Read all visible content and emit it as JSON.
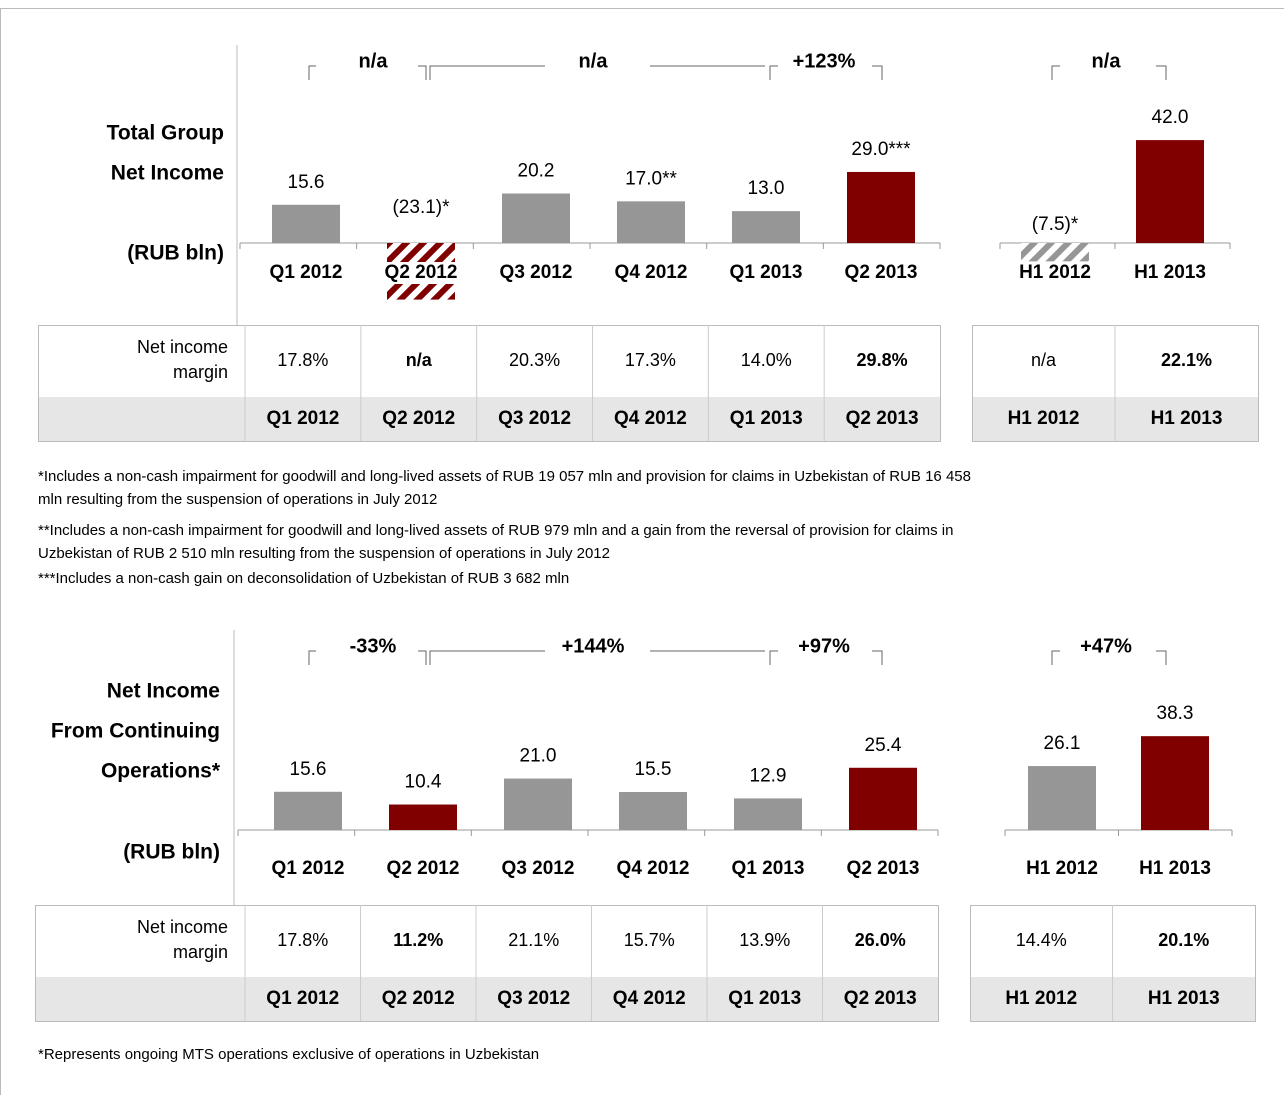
{
  "chart_data": [
    {
      "type": "bar",
      "categories": [
        "Q1 2012",
        "Q2 2012",
        "Q3 2012",
        "Q4 2012",
        "Q1 2013",
        "Q2 2013"
      ],
      "values": [
        15.6,
        -23.1,
        20.2,
        17.0,
        13.0,
        29.0
      ],
      "value_labels": [
        "15.6",
        "(23.1)*",
        "20.2",
        "17.0**",
        "13.0",
        "29.0***"
      ],
      "colors": [
        "#969696",
        "#800000",
        "#969696",
        "#969696",
        "#969696",
        "#800000"
      ]
    },
    {
      "type": "bar",
      "categories": [
        "H1 2012",
        "H1 2013"
      ],
      "values": [
        -7.5,
        42.0
      ],
      "value_labels": [
        "(7.5)*",
        "42.0"
      ],
      "colors": [
        "#969696",
        "#800000"
      ]
    },
    {
      "type": "bar",
      "categories": [
        "Q1 2012",
        "Q2 2012",
        "Q3 2012",
        "Q4 2012",
        "Q1 2013",
        "Q2 2013"
      ],
      "values": [
        15.6,
        10.4,
        21.0,
        15.5,
        12.9,
        25.4
      ],
      "value_labels": [
        "15.6",
        "10.4",
        "21.0",
        "15.5",
        "12.9",
        "25.4"
      ],
      "colors": [
        "#969696",
        "#800000",
        "#969696",
        "#969696",
        "#969696",
        "#800000"
      ]
    },
    {
      "type": "bar",
      "categories": [
        "H1 2012",
        "H1 2013"
      ],
      "values": [
        26.1,
        38.3
      ],
      "value_labels": [
        "26.1",
        "38.3"
      ],
      "colors": [
        "#969696",
        "#800000"
      ]
    }
  ],
  "sections": [
    {
      "title_lines": [
        "Total Group",
        "Net Income"
      ],
      "unit": "(RUB bln)",
      "growth": [
        "n/a",
        "n/a",
        "+123%",
        "n/a"
      ],
      "table": {
        "row_label": [
          "Net income",
          "margin"
        ],
        "quarterly": {
          "values": [
            "17.8%",
            "n/a",
            "20.3%",
            "17.3%",
            "14.0%",
            "29.8%"
          ],
          "categories": [
            "Q1 2012",
            "Q2 2012",
            "Q3 2012",
            "Q4 2012",
            "Q1 2013",
            "Q2 2013"
          ],
          "colors": [
            "#000000",
            "#8b0000",
            "#000000",
            "#000000",
            "#000000",
            "#8b0000"
          ]
        },
        "half": {
          "values": [
            "n/a",
            "22.1%"
          ],
          "categories": [
            "H1 2012",
            "H1 2013"
          ],
          "colors": [
            "#000000",
            "#8b0000"
          ]
        }
      },
      "footnotes": [
        "*Includes a non-cash impairment for goodwill and long-lived assets of RUB 19 057 mln and provision for claims in Uzbekistan of RUB 16 458",
        "mln resulting from the suspension of operations in July 2012",
        "**Includes a non-cash impairment for goodwill and long-lived assets of RUB 979 mln and a gain from the reversal of provision for claims in",
        "Uzbekistan of RUB 2 510 mln resulting from the suspension of operations in July 2012",
        "***Includes a non-cash gain on deconsolidation of Uzbekistan of RUB 3 682 mln"
      ]
    },
    {
      "title_lines": [
        "Net Income",
        "From Continuing",
        "Operations*"
      ],
      "unit": "(RUB bln)",
      "growth": [
        "-33%",
        "+144%",
        "+97%",
        "+47%"
      ],
      "table": {
        "row_label": [
          "Net income",
          "margin"
        ],
        "quarterly": {
          "values": [
            "17.8%",
            "11.2%",
            "21.1%",
            "15.7%",
            "13.9%",
            "26.0%"
          ],
          "categories": [
            "Q1 2012",
            "Q2 2012",
            "Q3 2012",
            "Q4 2012",
            "Q1 2013",
            "Q2 2013"
          ],
          "colors": [
            "#000000",
            "#8b0000",
            "#000000",
            "#000000",
            "#000000",
            "#8b0000"
          ]
        },
        "half": {
          "values": [
            "14.4%",
            "20.1%"
          ],
          "categories": [
            "H1 2012",
            "H1 2013"
          ],
          "colors": [
            "#000000",
            "#8b0000"
          ]
        }
      },
      "footnotes": [
        "*Represents ongoing MTS operations exclusive of operations in Uzbekistan"
      ]
    }
  ]
}
